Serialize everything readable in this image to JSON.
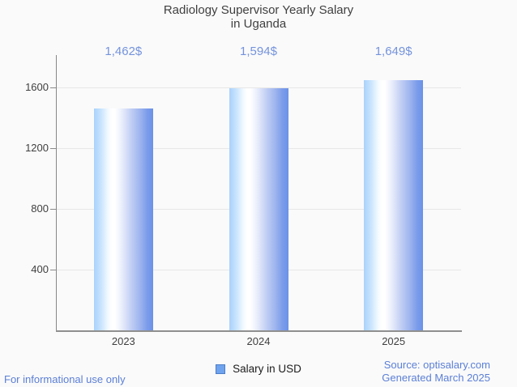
{
  "header": {
    "title_line1": "Radiology Supervisor Yearly Salary",
    "title_line2": "in Uganda"
  },
  "chart_data": {
    "type": "bar",
    "title": "Radiology Supervisor Yearly Salary in Uganda",
    "categories": [
      "2023",
      "2024",
      "2025"
    ],
    "series": [
      {
        "name": "Salary in USD",
        "values": [
          1462,
          1594,
          1649
        ]
      }
    ],
    "value_labels": [
      "1,462$",
      "1,594$",
      "1,649$"
    ],
    "xlabel": "",
    "ylabel": "",
    "yticks": [
      400,
      800,
      1200,
      1600
    ],
    "ylim": [
      0,
      1820
    ],
    "grid": true,
    "legend_position": "bottom"
  },
  "legend": {
    "label": "Salary in USD"
  },
  "footer": {
    "disclaimer": "For informational use only",
    "source": "Source: optisalary.com",
    "generated": "Generated March 2025"
  },
  "colors": {
    "background": "#fafafa",
    "title_text": "#3f3f3f",
    "axis_text": "#3f3f3f",
    "value_label_text": "#7493dc",
    "footer_text": "#5b7fd6",
    "gridline": "#e7e7e7",
    "axis_line": "#8a8a8a",
    "bar_gradient_left": "#a8d2fc",
    "bar_gradient_mid": "#ffffff",
    "bar_gradient_right": "#6b92e8",
    "legend_swatch_fill": "#6fa3ee",
    "legend_swatch_border": "#4d7ec8"
  }
}
